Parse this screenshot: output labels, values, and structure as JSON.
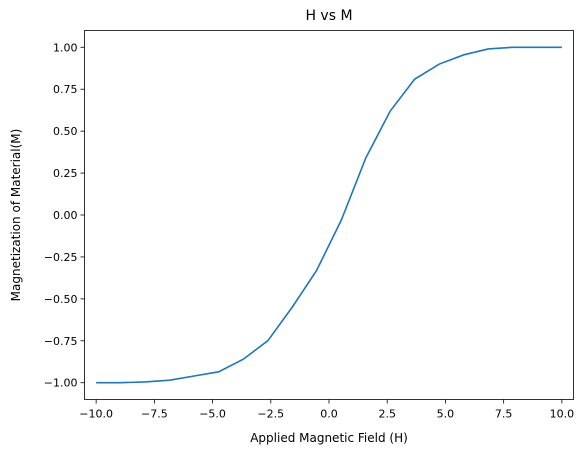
{
  "chart_data": {
    "type": "line",
    "title": "H vs M",
    "xlabel": "Applied Magnetic Field (H)",
    "ylabel": "Magnetization of Material(M)",
    "xlim": [
      -10.5,
      10.5
    ],
    "ylim": [
      -1.1,
      1.1
    ],
    "grid": false,
    "legend": "none",
    "line_color": "#1f77b4",
    "x_ticks": [
      {
        "value": -10.0,
        "label": "−10.0"
      },
      {
        "value": -7.5,
        "label": "−7.5"
      },
      {
        "value": -5.0,
        "label": "−5.0"
      },
      {
        "value": -2.5,
        "label": "−2.5"
      },
      {
        "value": 0.0,
        "label": "0.0"
      },
      {
        "value": 2.5,
        "label": "2.5"
      },
      {
        "value": 5.0,
        "label": "5.0"
      },
      {
        "value": 7.5,
        "label": "7.5"
      },
      {
        "value": 10.0,
        "label": "10.0"
      }
    ],
    "y_ticks": [
      {
        "value": -1.0,
        "label": "−1.00"
      },
      {
        "value": -0.75,
        "label": "−0.75"
      },
      {
        "value": -0.5,
        "label": "−0.50"
      },
      {
        "value": -0.25,
        "label": "−0.25"
      },
      {
        "value": 0.0,
        "label": "0.00"
      },
      {
        "value": 0.25,
        "label": "0.25"
      },
      {
        "value": 0.5,
        "label": "0.50"
      },
      {
        "value": 0.75,
        "label": "0.75"
      },
      {
        "value": 1.0,
        "label": "1.00"
      }
    ],
    "series": [
      {
        "x": [
          -10.0,
          -8.95,
          -7.89,
          -6.84,
          -5.79,
          -4.74,
          -3.68,
          -2.63,
          -1.58,
          -0.53,
          0.53,
          1.58,
          2.63,
          3.68,
          4.74,
          5.79,
          6.84,
          7.89,
          8.95,
          10.0
        ],
        "y": [
          -1.0,
          -1.0,
          -0.995,
          -0.985,
          -0.96,
          -0.935,
          -0.86,
          -0.75,
          -0.55,
          -0.33,
          -0.03,
          0.34,
          0.62,
          0.81,
          0.9,
          0.955,
          0.99,
          1.0,
          1.0,
          1.0
        ]
      }
    ]
  }
}
